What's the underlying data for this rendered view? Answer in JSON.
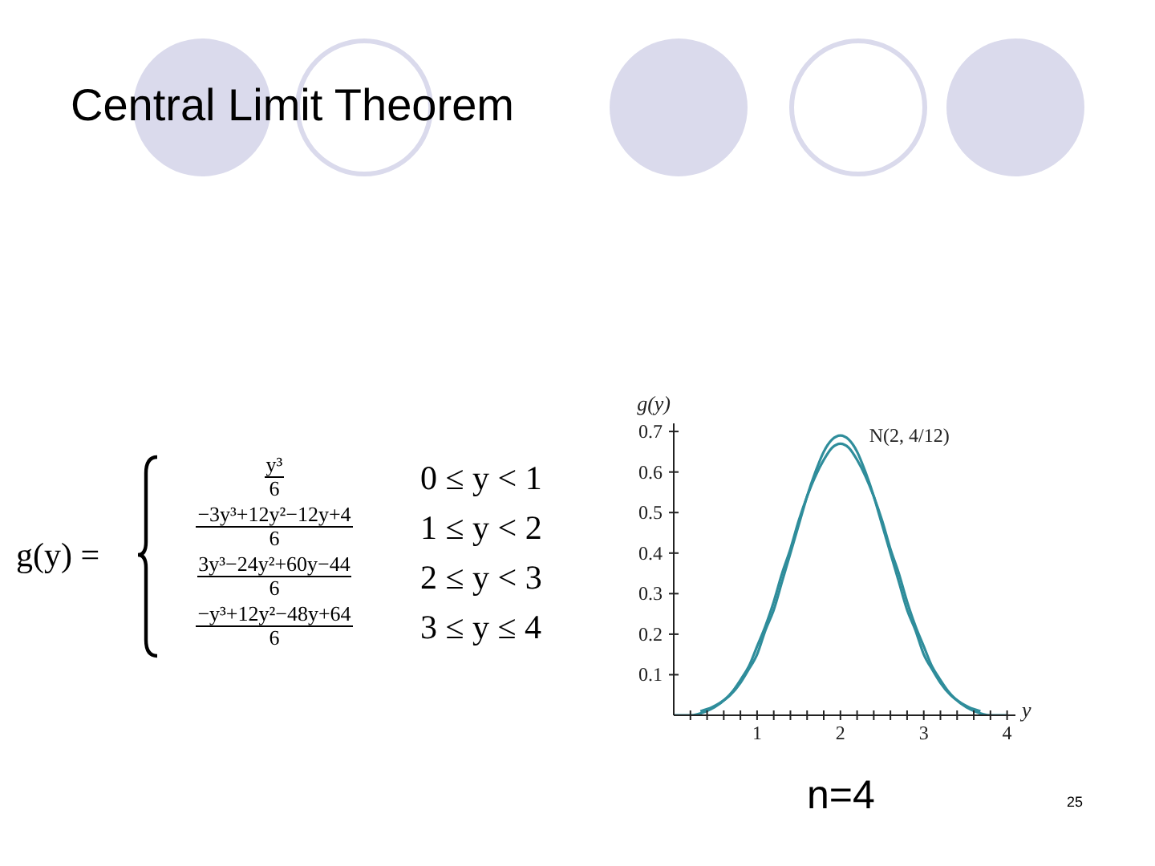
{
  "chart_data": {
    "type": "line",
    "title": "Central Limit Theorem",
    "xlabel": "y",
    "ylabel": "g(y)",
    "series": [
      {
        "color": "#2f8d9b",
        "x": [
          0,
          0.2,
          0.39,
          0.49,
          0.62,
          0.71,
          0.81,
          0.9,
          1,
          1.1,
          1.2,
          1.3,
          1.4,
          1.5,
          1.6,
          1.7,
          1.8,
          1.9,
          2,
          2.1,
          2.2,
          2.3,
          2.4,
          2.5,
          2.6,
          2.7,
          2.8,
          2.9,
          3,
          3.1,
          3.19,
          3.29,
          3.38,
          3.51,
          3.61,
          3.8,
          4
        ],
        "values": [
          0,
          0,
          0.01,
          0.02,
          0.04,
          0.06,
          0.09,
          0.12,
          0.17,
          0.22,
          0.28,
          0.35,
          0.41,
          0.48,
          0.54,
          0.59,
          0.63,
          0.66,
          0.67,
          0.66,
          0.63,
          0.59,
          0.54,
          0.48,
          0.41,
          0.35,
          0.28,
          0.22,
          0.17,
          0.12,
          0.09,
          0.06,
          0.04,
          0.02,
          0.01,
          0,
          0
        ]
      },
      {
        "name": "N(2, 4/12)",
        "color": "#2f8d9b",
        "x": [
          0.32,
          0.46,
          0.55,
          0.68,
          0.8,
          0.89,
          1,
          1.1,
          1.2,
          1.3,
          1.4,
          1.5,
          1.6,
          1.7,
          1.8,
          1.9,
          2,
          2.1,
          2.2,
          2.3,
          2.4,
          2.5,
          2.6,
          2.7,
          2.8,
          2.9,
          3,
          3.11,
          3.2,
          3.32,
          3.45,
          3.54,
          3.68
        ],
        "values": [
          0.01,
          0.02,
          0.03,
          0.05,
          0.08,
          0.11,
          0.15,
          0.21,
          0.26,
          0.33,
          0.4,
          0.47,
          0.54,
          0.6,
          0.65,
          0.68,
          0.69,
          0.68,
          0.65,
          0.6,
          0.54,
          0.47,
          0.4,
          0.33,
          0.26,
          0.21,
          0.15,
          0.11,
          0.08,
          0.05,
          0.03,
          0.02,
          0.01
        ]
      }
    ],
    "xlim": [
      0,
      4.1
    ],
    "ylim": [
      0,
      0.72
    ],
    "xticks": [
      {
        "value": 0.2,
        "label": null
      },
      {
        "value": 0.4,
        "label": null
      },
      {
        "value": 0.6,
        "label": null
      },
      {
        "value": 0.8,
        "label": null
      },
      1,
      {
        "value": 1.2,
        "label": null
      },
      {
        "value": 1.4,
        "label": null
      },
      {
        "value": 1.6,
        "label": null
      },
      {
        "value": 1.8,
        "label": null
      },
      2,
      {
        "value": 2.2,
        "label": null
      },
      {
        "value": 2.4,
        "label": null
      },
      {
        "value": 2.6,
        "label": null
      },
      {
        "value": 2.8,
        "label": null
      },
      3,
      {
        "value": 3.2,
        "label": null
      },
      {
        "value": 3.4,
        "label": null
      },
      {
        "value": 3.6,
        "label": null
      },
      {
        "value": 3.8,
        "label": null
      },
      4
    ],
    "yticks": [
      0.1,
      0.2,
      0.3,
      0.4,
      0.5,
      0.6,
      0.7
    ],
    "annotations": [
      "g(y) =",
      "y³",
      "6",
      "0 ≤ y < 1",
      "−3y³+12y²−12y+4",
      "6",
      "1 ≤ y < 2",
      "3y³−24y²+60y−44",
      "6",
      "2 ≤ y < 3",
      "−y³+12y²−48y+64",
      "6",
      "3 ≤ y ≤ 4",
      "n=4",
      "25"
    ]
  }
}
